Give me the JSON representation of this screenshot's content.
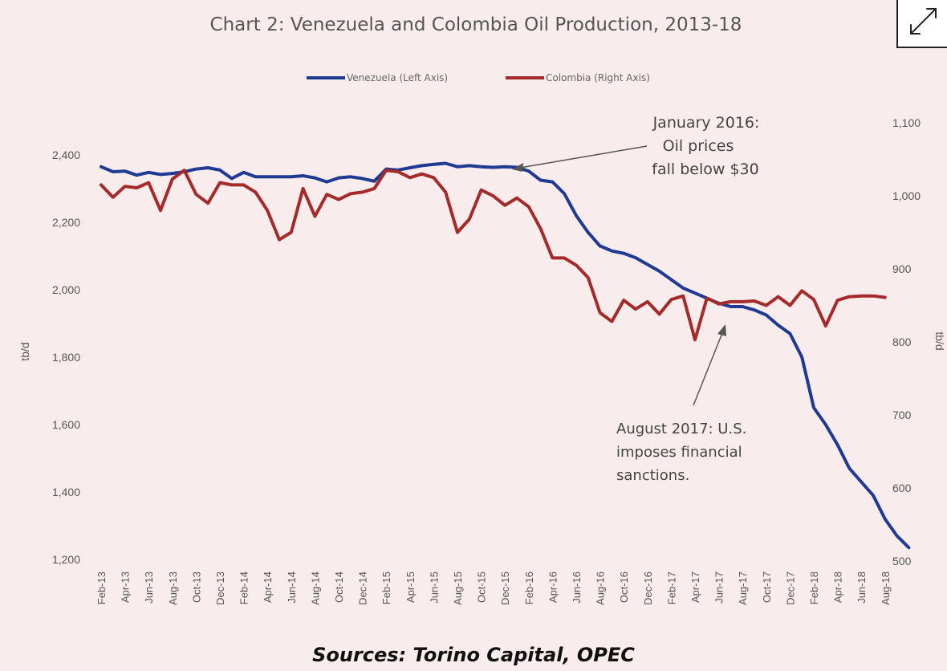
{
  "chart_data": {
    "type": "line",
    "title": "Chart 2: Venezuela and Colombia Oil Production, 2013-18",
    "ylabel_left": "tb/d",
    "ylabel_right": "tb/d",
    "ylim_left": [
      1200,
      2400
    ],
    "ylim_right": [
      500,
      1100
    ],
    "left_ticks": [
      "1,200",
      "1,400",
      "1,600",
      "1,800",
      "2,000",
      "2,200",
      "2,400"
    ],
    "right_ticks": [
      "500",
      "600",
      "700",
      "800",
      "900",
      "1,000",
      "1,100"
    ],
    "x_tick_labels": [
      "Feb-13",
      "Apr-13",
      "Jun-13",
      "Aug-13",
      "Oct-13",
      "Dec-13",
      "Feb-14",
      "Apr-14",
      "Jun-14",
      "Aug-14",
      "Oct-14",
      "Dec-14",
      "Feb-15",
      "Apr-15",
      "Jun-15",
      "Aug-15",
      "Oct-15",
      "Dec-15",
      "Feb-16",
      "Apr-16",
      "Jun-16",
      "Aug-16",
      "Oct-16",
      "Dec-16",
      "Feb-17",
      "Apr-17",
      "Jun-17",
      "Aug-17",
      "Oct-17",
      "Dec-17",
      "Feb-18",
      "Apr-18",
      "Jun-18",
      "Aug-18"
    ],
    "series": [
      {
        "name": "Venezuela (Left Axis)",
        "axis": "left",
        "color": "#1f3a93",
        "start": "Feb-13",
        "values": [
          2365,
          2350,
          2352,
          2340,
          2348,
          2342,
          2345,
          2350,
          2358,
          2362,
          2355,
          2330,
          2348,
          2335,
          2335,
          2335,
          2335,
          2338,
          2332,
          2320,
          2332,
          2335,
          2330,
          2322,
          2358,
          2355,
          2362,
          2368,
          2372,
          2375,
          2365,
          2368,
          2365,
          2363,
          2365,
          2363,
          2352,
          2325,
          2320,
          2285,
          2220,
          2170,
          2130,
          2115,
          2108,
          2095,
          2075,
          2055,
          2030,
          2005,
          1990,
          1975,
          1960,
          1950,
          1950,
          1940,
          1925,
          1895,
          1870,
          1800,
          1650,
          1600,
          1540,
          1470,
          1430,
          1390,
          1320,
          1270,
          1235
        ]
      },
      {
        "name": "Colombia (Right Axis)",
        "axis": "right",
        "color": "#a52a2a",
        "start": "Feb-13",
        "values": [
          1015,
          998,
          1013,
          1011,
          1018,
          980,
          1023,
          1035,
          1002,
          990,
          1018,
          1015,
          1015,
          1005,
          980,
          940,
          950,
          1010,
          972,
          1002,
          995,
          1003,
          1005,
          1010,
          1035,
          1033,
          1025,
          1030,
          1025,
          1005,
          950,
          968,
          1008,
          1000,
          987,
          997,
          985,
          955,
          915,
          915,
          905,
          888,
          840,
          828,
          857,
          845,
          855,
          838,
          858,
          863,
          803,
          860,
          852,
          855,
          855,
          856,
          850,
          862,
          850,
          870,
          858,
          822,
          857,
          862,
          863,
          863,
          861
        ]
      }
    ],
    "legend": [
      {
        "label": "Venezuela (Left Axis)",
        "color": "#1f3a93"
      },
      {
        "label": "Colombia (Right Axis)",
        "color": "#a52a2a"
      }
    ],
    "annotations": [
      {
        "lines": [
          "January 2016:",
          "Oil prices",
          "fall below $30"
        ],
        "points_to": "Jan-16"
      },
      {
        "lines": [
          "August 2017:  U.S.",
          "imposes financial",
          "sanctions."
        ],
        "points_to": "Aug-17"
      }
    ]
  },
  "source_text": "Sources: Torino Capital, OPEC"
}
